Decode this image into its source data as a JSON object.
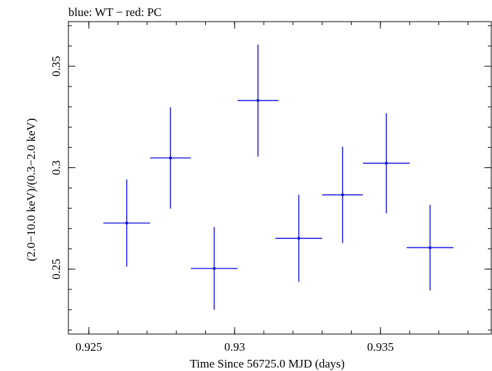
{
  "chart_data": {
    "type": "scatter",
    "title": "blue: WT − red: PC",
    "xlabel": "Time Since 56725.0 MJD (days)",
    "ylabel": "(2.0−10.0 keV)/(0.3−2.0 keV)",
    "xlim": [
      0.9243,
      0.9388
    ],
    "ylim": [
      0.218,
      0.372
    ],
    "x_ticks": [
      {
        "value": 0.925,
        "label": "0.925"
      },
      {
        "value": 0.93,
        "label": "0.93"
      },
      {
        "value": 0.935,
        "label": "0.935"
      }
    ],
    "y_ticks": [
      {
        "value": 0.25,
        "label": "0.25"
      },
      {
        "value": 0.3,
        "label": "0.3"
      },
      {
        "value": 0.35,
        "label": "0.35"
      }
    ],
    "x_minor_step": 0.001,
    "y_minor_step": 0.01,
    "grid": false,
    "series": [
      {
        "color": "#0000dd",
        "points": [
          {
            "x": 0.9263,
            "xerr": 0.0008,
            "y": 0.2727,
            "yerr": 0.0215
          },
          {
            "x": 0.9278,
            "xerr": 0.0007,
            "y": 0.3048,
            "yerr": 0.025
          },
          {
            "x": 0.9293,
            "xerr": 0.0008,
            "y": 0.2503,
            "yerr": 0.0204
          },
          {
            "x": 0.9308,
            "xerr": 0.0007,
            "y": 0.3331,
            "yerr": 0.0276
          },
          {
            "x": 0.9322,
            "xerr": 0.0008,
            "y": 0.2652,
            "yerr": 0.0214
          },
          {
            "x": 0.9337,
            "xerr": 0.0007,
            "y": 0.2866,
            "yerr": 0.0237
          },
          {
            "x": 0.9352,
            "xerr": 0.0008,
            "y": 0.3022,
            "yerr": 0.0247
          },
          {
            "x": 0.9367,
            "xerr": 0.0008,
            "y": 0.2606,
            "yerr": 0.0211
          }
        ]
      }
    ]
  }
}
